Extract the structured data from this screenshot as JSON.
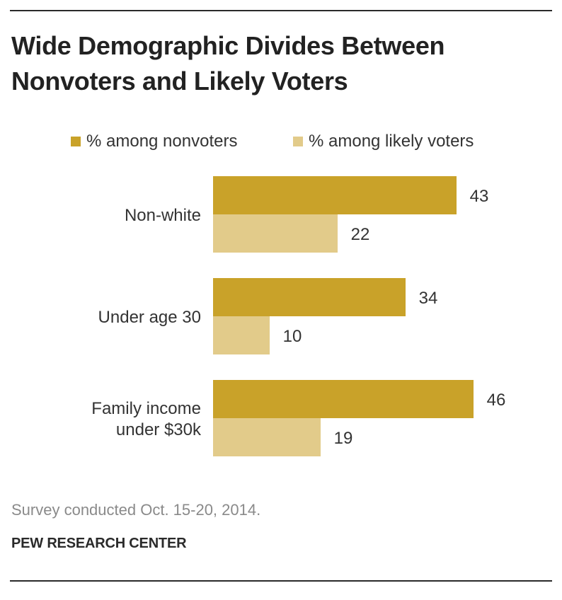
{
  "chart_data": {
    "type": "bar",
    "orientation": "horizontal",
    "title": "Wide Demographic Divides Between Nonvoters and Likely Voters",
    "categories": [
      [
        "Non-white"
      ],
      [
        "Under age 30"
      ],
      [
        "Family income",
        "under $30k"
      ]
    ],
    "series": [
      {
        "name": "% among nonvoters",
        "values": [
          43,
          34,
          46
        ],
        "color": "#c9a229"
      },
      {
        "name": "% among likely voters",
        "values": [
          22,
          10,
          19
        ],
        "color": "#e2cb8a"
      }
    ],
    "xlim": [
      0,
      46
    ],
    "xlabel": "",
    "ylabel": ""
  },
  "footer": {
    "note": "Survey conducted Oct. 15-20, 2014.",
    "source": "PEW RESEARCH CENTER"
  }
}
